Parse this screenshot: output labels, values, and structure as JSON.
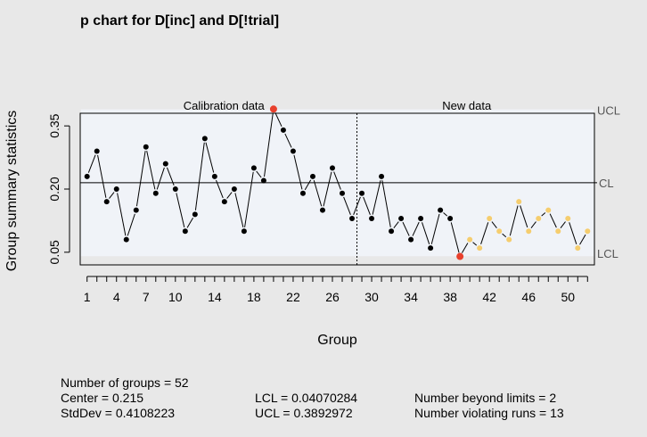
{
  "chart_data": {
    "type": "line",
    "chart_kind": "p chart",
    "title": "p chart for D[inc] and D[!trial]",
    "xlabel": "Group",
    "ylabel": "Group summary statistics",
    "xlim": [
      0.3,
      52.7
    ],
    "ylim": [
      0.02,
      0.38
    ],
    "x_ticks": [
      1,
      4,
      7,
      10,
      14,
      18,
      22,
      26,
      30,
      34,
      38,
      42,
      46,
      50
    ],
    "y_ticks": [
      {
        "value": 0.05,
        "label": "0.05"
      },
      {
        "value": 0.2,
        "label": "0.20"
      },
      {
        "value": 0.35,
        "label": "0.35"
      }
    ],
    "center": 0.215,
    "lcl_value": 0.0407,
    "ucl_value": 0.3893,
    "limit_labels": {
      "ucl": "UCL",
      "cl": "CL",
      "lcl": "LCL"
    },
    "section_labels": {
      "calibration": "Calibration data",
      "new": "New data"
    },
    "calibration_end": 28.5,
    "points": [
      {
        "x": 1,
        "y": 0.23,
        "status": "normal"
      },
      {
        "x": 2,
        "y": 0.29,
        "status": "normal"
      },
      {
        "x": 3,
        "y": 0.17,
        "status": "normal"
      },
      {
        "x": 4,
        "y": 0.2,
        "status": "normal"
      },
      {
        "x": 5,
        "y": 0.08,
        "status": "normal"
      },
      {
        "x": 6,
        "y": 0.15,
        "status": "normal"
      },
      {
        "x": 7,
        "y": 0.3,
        "status": "normal"
      },
      {
        "x": 8,
        "y": 0.19,
        "status": "normal"
      },
      {
        "x": 9,
        "y": 0.26,
        "status": "normal"
      },
      {
        "x": 10,
        "y": 0.2,
        "status": "normal"
      },
      {
        "x": 11,
        "y": 0.1,
        "status": "normal"
      },
      {
        "x": 12,
        "y": 0.14,
        "status": "normal"
      },
      {
        "x": 13,
        "y": 0.32,
        "status": "normal"
      },
      {
        "x": 14,
        "y": 0.23,
        "status": "normal"
      },
      {
        "x": 15,
        "y": 0.17,
        "status": "normal"
      },
      {
        "x": 16,
        "y": 0.2,
        "status": "normal"
      },
      {
        "x": 17,
        "y": 0.1,
        "status": "normal"
      },
      {
        "x": 18,
        "y": 0.25,
        "status": "normal"
      },
      {
        "x": 19,
        "y": 0.22,
        "status": "normal"
      },
      {
        "x": 20,
        "y": 0.39,
        "status": "beyond"
      },
      {
        "x": 21,
        "y": 0.34,
        "status": "normal"
      },
      {
        "x": 22,
        "y": 0.29,
        "status": "normal"
      },
      {
        "x": 23,
        "y": 0.19,
        "status": "normal"
      },
      {
        "x": 24,
        "y": 0.23,
        "status": "normal"
      },
      {
        "x": 25,
        "y": 0.15,
        "status": "normal"
      },
      {
        "x": 26,
        "y": 0.25,
        "status": "normal"
      },
      {
        "x": 27,
        "y": 0.19,
        "status": "normal"
      },
      {
        "x": 28,
        "y": 0.13,
        "status": "normal"
      },
      {
        "x": 29,
        "y": 0.19,
        "status": "normal"
      },
      {
        "x": 30,
        "y": 0.13,
        "status": "normal"
      },
      {
        "x": 31,
        "y": 0.23,
        "status": "normal"
      },
      {
        "x": 32,
        "y": 0.1,
        "status": "normal"
      },
      {
        "x": 33,
        "y": 0.13,
        "status": "normal"
      },
      {
        "x": 34,
        "y": 0.08,
        "status": "normal"
      },
      {
        "x": 35,
        "y": 0.13,
        "status": "normal"
      },
      {
        "x": 36,
        "y": 0.06,
        "status": "normal"
      },
      {
        "x": 37,
        "y": 0.15,
        "status": "normal"
      },
      {
        "x": 38,
        "y": 0.13,
        "status": "normal"
      },
      {
        "x": 39,
        "y": 0.04,
        "status": "beyond"
      },
      {
        "x": 40,
        "y": 0.08,
        "status": "run"
      },
      {
        "x": 41,
        "y": 0.06,
        "status": "run"
      },
      {
        "x": 42,
        "y": 0.13,
        "status": "run"
      },
      {
        "x": 43,
        "y": 0.1,
        "status": "run"
      },
      {
        "x": 44,
        "y": 0.08,
        "status": "run"
      },
      {
        "x": 45,
        "y": 0.17,
        "status": "run"
      },
      {
        "x": 46,
        "y": 0.1,
        "status": "run"
      },
      {
        "x": 47,
        "y": 0.13,
        "status": "run"
      },
      {
        "x": 48,
        "y": 0.15,
        "status": "run"
      },
      {
        "x": 49,
        "y": 0.1,
        "status": "run"
      },
      {
        "x": 50,
        "y": 0.13,
        "status": "run"
      },
      {
        "x": 51,
        "y": 0.06,
        "status": "run"
      },
      {
        "x": 52,
        "y": 0.1,
        "status": "run"
      }
    ],
    "colors": {
      "normal": "#000000",
      "beyond": "#e8402c",
      "run": "#f5cd6e",
      "band": "#f0f3f8",
      "frame": "#000000"
    }
  },
  "stats": {
    "groups": "Number of groups = 52",
    "center": "Center = 0.215",
    "stddev": "StdDev = 0.4108223",
    "lcl": "LCL = 0.04070284",
    "ucl": "UCL = 0.3892972",
    "beyond_limits": "Number beyond limits = 2",
    "violating_runs": "Number violating runs = 13"
  }
}
